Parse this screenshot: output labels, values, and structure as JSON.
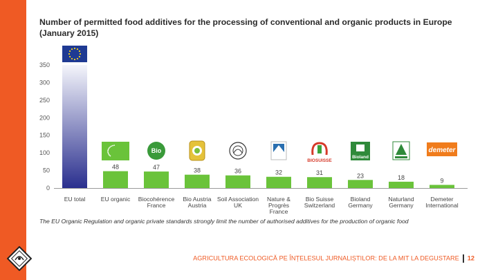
{
  "page": {
    "title": "Number of permitted food additives for the processing of conventional and organic products in Europe (January 2015)",
    "caption": "The EU Organic Regulation and organic private standards strongly limit the number of authorised additives for the production of organic food",
    "footer_text": "AGRICULTURA ECOLOGICĂ PE ÎNȚELESUL JURNALIȘTILOR: DE LA MIT LA DEGUSTARE",
    "page_number": "12",
    "accent_color": "#ef5a24"
  },
  "chart_data": {
    "type": "bar",
    "title": "Number of permitted food additives for the processing of conventional and organic products in Europe (January 2015)",
    "xlabel": "",
    "ylabel": "",
    "ylim": [
      0,
      350
    ],
    "yticks": [
      0,
      50,
      100,
      150,
      200,
      250,
      300,
      350
    ],
    "grid": false,
    "categories": [
      {
        "label1": "EU total",
        "label2": "",
        "label3": "",
        "logo": "eu-flag"
      },
      {
        "label1": "EU organic",
        "label2": "",
        "label3": "",
        "logo": "eu-organic-leaf"
      },
      {
        "label1": "Biocohérence",
        "label2": "France",
        "label3": "",
        "logo": "biocoherence"
      },
      {
        "label1": "Bio Austria",
        "label2": "Austria",
        "label3": "",
        "logo": "bio-austria"
      },
      {
        "label1": "Soil Association",
        "label2": "UK",
        "label3": "",
        "logo": "soil-association"
      },
      {
        "label1": "Nature &",
        "label2": "Progrès",
        "label3": "France",
        "logo": "nature-progres"
      },
      {
        "label1": "Bio Suisse",
        "label2": "Switzerland",
        "label3": "",
        "logo": "bio-suisse"
      },
      {
        "label1": "Bioland",
        "label2": "Germany",
        "label3": "",
        "logo": "bioland"
      },
      {
        "label1": "Naturland",
        "label2": "Germany",
        "label3": "",
        "logo": "naturland"
      },
      {
        "label1": "Demeter",
        "label2": "International",
        "label3": "",
        "logo": "demeter"
      }
    ],
    "values": [
      350,
      48,
      47,
      38,
      36,
      32,
      31,
      23,
      18,
      9
    ],
    "value_labels": [
      "",
      "48",
      "47",
      "38",
      "36",
      "32",
      "31",
      "23",
      "18",
      "9"
    ],
    "logo_texts": {
      "biocoherence": "Bio",
      "bio-suisse": "BIOSUISSE",
      "bioland": "Bioland",
      "demeter": "demeter"
    },
    "colors": {
      "total_top": "#f4f5fb",
      "total_bottom": "#2a2f8e",
      "organic": "#6ac33a",
      "axis": "#999999",
      "tick_text": "#555555",
      "label_text": "#444444"
    }
  }
}
